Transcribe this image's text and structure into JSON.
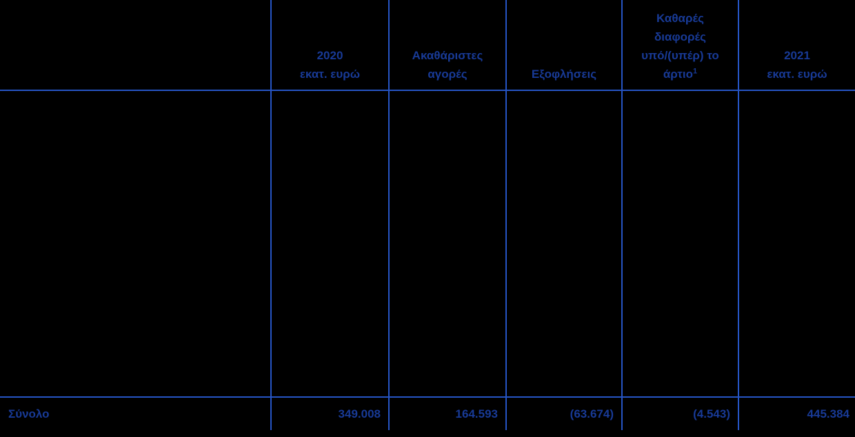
{
  "table": {
    "description": "Financial table in Greek on black background",
    "header": {
      "col1_lines": [],
      "col2_lines": [
        "2020",
        "εκατ. ευρώ"
      ],
      "col3_lines": [
        "Ακαθάριστες",
        "αγορές"
      ],
      "col4_lines": [
        "Εξοφλήσεις"
      ],
      "col5_lines": [
        "Καθαρές",
        "διαφορές",
        "υπό/(υπέρ) το"
      ],
      "col5_last_line_base": "άρτιο",
      "col5_footnote_marker": "1",
      "col6_lines": [
        "2021",
        "εκατ. ευρώ"
      ]
    },
    "total": {
      "label": "Σύνολο",
      "col2": "349.008",
      "col3": "164.593",
      "col4": "(63.674)",
      "col5": "(4.543)",
      "col6": "445.384"
    }
  },
  "chart_data": {
    "type": "table",
    "columns": [
      "",
      "2020 εκατ. ευρώ",
      "Ακαθάριστες αγορές",
      "Εξοφλήσεις",
      "Καθαρές διαφορές υπό/(υπέρ) το άρτιο¹",
      "2021 εκατ. ευρώ"
    ],
    "rows": [
      [
        "Σύνολο",
        "349.008",
        "164.593",
        "(63.674)",
        "(4.543)",
        "445.384"
      ]
    ]
  },
  "colors": {
    "background": "#000000",
    "grid_line": "#2655C5",
    "text": "#183A96"
  }
}
